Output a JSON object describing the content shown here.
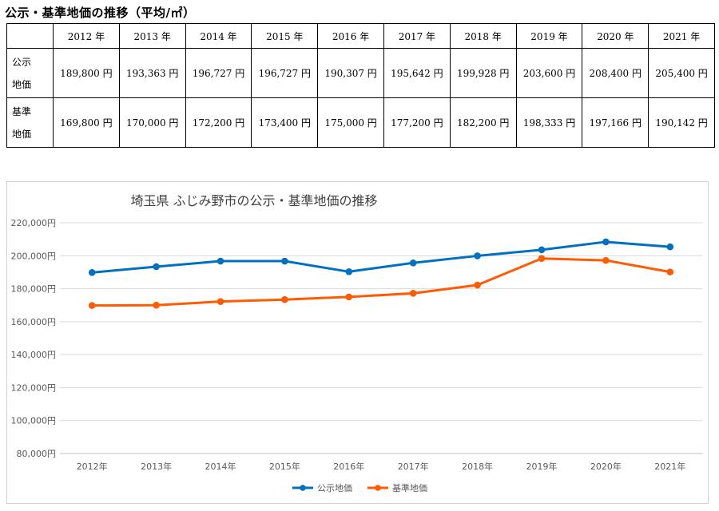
{
  "heading": "公示・基準地価の推移（平均/㎡）",
  "table": {
    "corner": "",
    "columns": [
      "2012 年",
      "2013 年",
      "2014 年",
      "2015 年",
      "2016 年",
      "2017 年",
      "2018 年",
      "2019 年",
      "2020 年",
      "2021 年"
    ],
    "rows": [
      {
        "label": "公示\n地価",
        "cells": [
          "189,800 円",
          "193,363 円",
          "196,727 円",
          "196,727 円",
          "190,307 円",
          "195,642 円",
          "199,928 円",
          "203,600 円",
          "208,400 円",
          "205,400 円"
        ]
      },
      {
        "label": "基準\n地価",
        "cells": [
          "169,800 円",
          "170,000 円",
          "172,200 円",
          "173,400 円",
          "175,000 円",
          "177,200 円",
          "182,200 円",
          "198,333 円",
          "197,166 円",
          "190,142 円"
        ]
      }
    ]
  },
  "chart_data": {
    "type": "line",
    "title": "埼玉県 ふじみ野市の公示・基準地価の推移",
    "categories": [
      "2012年",
      "2013年",
      "2014年",
      "2015年",
      "2016年",
      "2017年",
      "2018年",
      "2019年",
      "2020年",
      "2021年"
    ],
    "series": [
      {
        "name": "公示地価",
        "color": "#0070c0",
        "values": [
          189800,
          193363,
          196727,
          196727,
          190307,
          195642,
          199928,
          203600,
          208400,
          205400
        ]
      },
      {
        "name": "基準地価",
        "color": "#ff5b00",
        "values": [
          169800,
          170000,
          172200,
          173400,
          175000,
          177200,
          182200,
          198333,
          197166,
          190142
        ]
      }
    ],
    "ylim": [
      80000,
      220000
    ],
    "yticks": [
      "80,000円",
      "100,000円",
      "120,000円",
      "140,000円",
      "160,000円",
      "180,000円",
      "200,000円",
      "220,000円"
    ],
    "ytick_values": [
      80000,
      100000,
      120000,
      140000,
      160000,
      180000,
      200000,
      220000
    ],
    "grid": true,
    "legend": "bottom"
  }
}
